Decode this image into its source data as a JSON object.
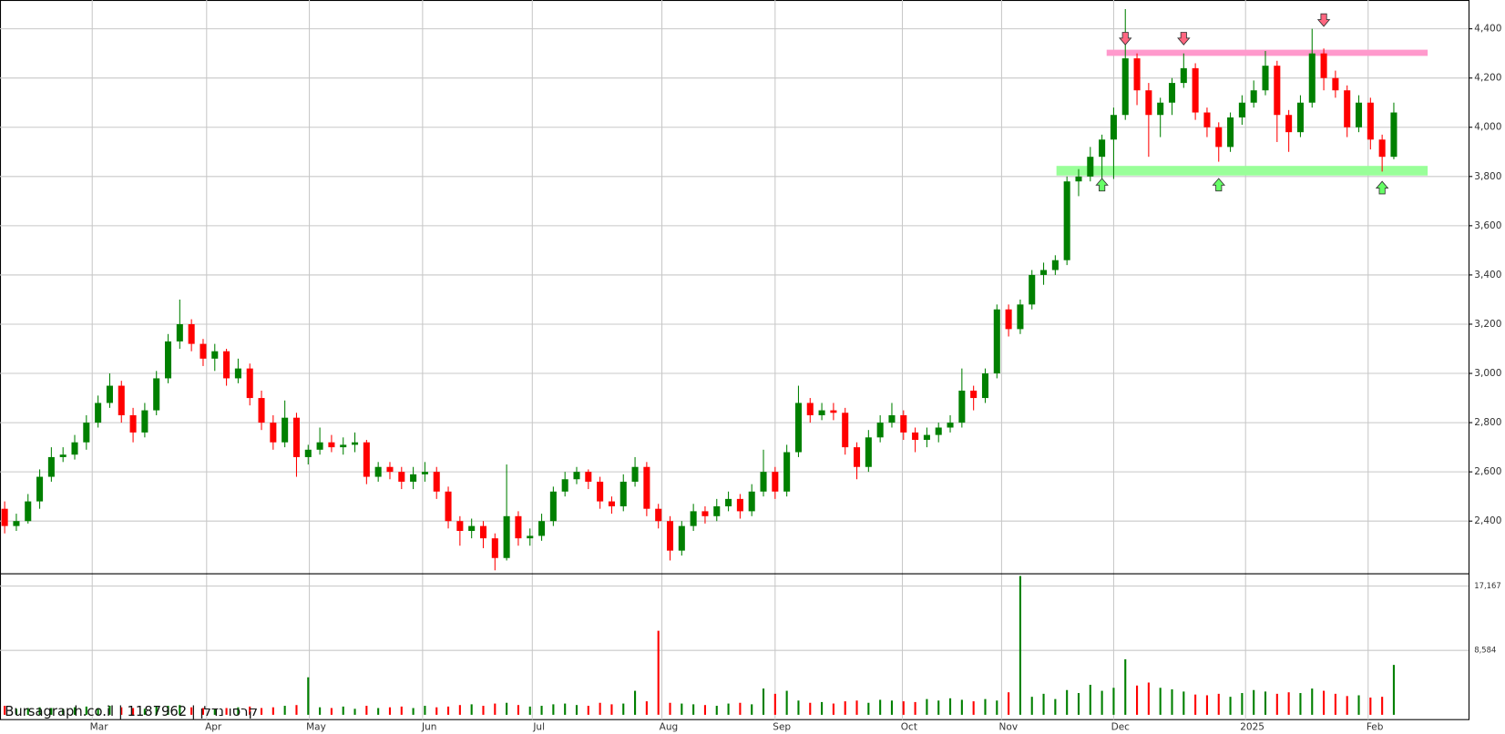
{
  "chart_data": {
    "type": "candlestick",
    "watermark": "Bursagraph.co.il | 1187962 | קרסו נדלן",
    "up_color": "#008000",
    "down_color": "#ff0000",
    "grid": true,
    "open": [
      2450,
      2380,
      2400,
      2480,
      2580,
      2660,
      2670,
      2720,
      2800,
      2880,
      2950,
      2830,
      2760,
      2850,
      2980,
      3130,
      3200,
      3120,
      3060,
      3090,
      2980,
      3020,
      2900,
      2800,
      2720,
      2820,
      2660,
      2690,
      2720,
      2700,
      2710,
      2720,
      2580,
      2620,
      2600,
      2560,
      2590,
      2600,
      2520,
      2400,
      2360,
      2380,
      2330,
      2250,
      2420,
      2330,
      2340,
      2400,
      2520,
      2570,
      2600,
      2560,
      2480,
      2460,
      2560,
      2620,
      2450,
      2400,
      2280,
      2380,
      2440,
      2420,
      2460,
      2490,
      2440,
      2520,
      2600,
      2520,
      2680,
      2880,
      2830,
      2850,
      2840,
      2700,
      2620,
      2740,
      2800,
      2830,
      2760,
      2730,
      2750,
      2780,
      2800,
      2930,
      2900,
      3000,
      3260,
      3180,
      3280,
      3400,
      3420,
      3460,
      3780,
      3800,
      3880,
      3950,
      4050,
      4280,
      4150,
      4050,
      4100,
      4180,
      4240,
      4060,
      4000,
      3920,
      4040,
      4100,
      4150,
      4250,
      4050,
      3980,
      4100,
      4300,
      4200,
      4150,
      4000,
      4100,
      3950,
      3880
    ],
    "high": [
      2480,
      2430,
      2510,
      2610,
      2700,
      2700,
      2750,
      2830,
      2910,
      3000,
      2970,
      2860,
      2880,
      3010,
      3160,
      3300,
      3220,
      3140,
      3120,
      3100,
      3060,
      3040,
      2930,
      2830,
      2890,
      2840,
      2710,
      2780,
      2750,
      2740,
      2760,
      2730,
      2640,
      2640,
      2620,
      2620,
      2640,
      2620,
      2540,
      2420,
      2410,
      2400,
      2350,
      2630,
      2440,
      2370,
      2430,
      2540,
      2600,
      2620,
      2610,
      2580,
      2500,
      2590,
      2660,
      2640,
      2470,
      2420,
      2400,
      2470,
      2460,
      2490,
      2520,
      2510,
      2550,
      2690,
      2620,
      2710,
      2950,
      2900,
      2880,
      2880,
      2860,
      2720,
      2770,
      2830,
      2880,
      2850,
      2780,
      2780,
      2800,
      2830,
      3020,
      2950,
      3020,
      3280,
      3280,
      3300,
      3420,
      3450,
      3480,
      3800,
      3830,
      3920,
      3970,
      4080,
      4480,
      4300,
      4180,
      4120,
      4200,
      4300,
      4260,
      4080,
      4020,
      4060,
      4130,
      4190,
      4310,
      4270,
      4070,
      4130,
      4400,
      4320,
      4230,
      4170,
      4130,
      4120,
      3970,
      4100
    ],
    "low": [
      2350,
      2360,
      2390,
      2450,
      2560,
      2640,
      2650,
      2690,
      2780,
      2860,
      2800,
      2720,
      2740,
      2830,
      2960,
      3100,
      3090,
      3030,
      3010,
      2950,
      2960,
      2870,
      2770,
      2690,
      2700,
      2580,
      2630,
      2670,
      2680,
      2670,
      2680,
      2550,
      2560,
      2570,
      2530,
      2530,
      2560,
      2490,
      2370,
      2300,
      2330,
      2290,
      2200,
      2240,
      2300,
      2300,
      2320,
      2380,
      2500,
      2550,
      2530,
      2450,
      2430,
      2440,
      2540,
      2420,
      2370,
      2240,
      2260,
      2360,
      2390,
      2400,
      2440,
      2410,
      2420,
      2500,
      2490,
      2500,
      2660,
      2800,
      2810,
      2810,
      2670,
      2570,
      2600,
      2720,
      2780,
      2730,
      2680,
      2700,
      2720,
      2760,
      2780,
      2850,
      2880,
      2980,
      3150,
      3160,
      3260,
      3360,
      3400,
      3440,
      3720,
      3780,
      3770,
      3790,
      4030,
      4090,
      3880,
      3960,
      4050,
      4160,
      4030,
      3960,
      3860,
      3900,
      4010,
      4080,
      4130,
      3940,
      3900,
      3960,
      4080,
      4150,
      4120,
      3960,
      3980,
      3910,
      3820,
      3870
    ],
    "close": [
      2380,
      2400,
      2480,
      2580,
      2660,
      2670,
      2720,
      2800,
      2880,
      2950,
      2830,
      2760,
      2850,
      2980,
      3130,
      3200,
      3120,
      3060,
      3090,
      2980,
      3020,
      2900,
      2800,
      2720,
      2820,
      2660,
      2690,
      2720,
      2700,
      2710,
      2720,
      2580,
      2620,
      2600,
      2560,
      2590,
      2600,
      2520,
      2400,
      2360,
      2380,
      2330,
      2250,
      2420,
      2330,
      2340,
      2400,
      2520,
      2570,
      2600,
      2560,
      2480,
      2460,
      2560,
      2620,
      2450,
      2400,
      2280,
      2380,
      2440,
      2420,
      2460,
      2490,
      2440,
      2520,
      2600,
      2520,
      2680,
      2880,
      2830,
      2850,
      2840,
      2700,
      2620,
      2740,
      2800,
      2830,
      2760,
      2730,
      2750,
      2780,
      2800,
      2930,
      2900,
      3000,
      3260,
      3180,
      3280,
      3400,
      3420,
      3460,
      3780,
      3800,
      3880,
      3950,
      4050,
      4280,
      4150,
      4050,
      4100,
      4180,
      4240,
      4060,
      4000,
      3920,
      4040,
      4100,
      4150,
      4250,
      4050,
      3980,
      4100,
      4300,
      4200,
      4150,
      4000,
      4100,
      3950,
      3880,
      4060
    ],
    "volume": [
      1200,
      800,
      900,
      1000,
      900,
      800,
      1000,
      1100,
      900,
      1200,
      1000,
      900,
      800,
      1100,
      1200,
      1300,
      1000,
      900,
      800,
      900,
      1000,
      1100,
      900,
      1000,
      1200,
      1300,
      5000,
      1000,
      900,
      1100,
      800,
      1200,
      900,
      1000,
      1100,
      900,
      1200,
      1000,
      1100,
      1300,
      1400,
      1200,
      1500,
      1600,
      1300,
      1100,
      1200,
      1400,
      1500,
      1300,
      1200,
      1600,
      1400,
      1500,
      3200,
      1800,
      11200,
      1600,
      1500,
      1400,
      1300,
      1200,
      1500,
      1600,
      1400,
      3500,
      2800,
      3200,
      1900,
      1600,
      1700,
      1500,
      1800,
      1900,
      1600,
      2000,
      1900,
      1800,
      1700,
      2100,
      1900,
      2200,
      2000,
      1800,
      2100,
      1900,
      3000,
      18500,
      2400,
      2800,
      2100,
      3300,
      2900,
      4000,
      3200,
      3600,
      7400,
      3900,
      4300,
      3600,
      3400,
      3100,
      2700,
      2600,
      2800,
      2400,
      2900,
      3300,
      3100,
      2800,
      3000,
      2900,
      3500,
      3200,
      2800,
      2500,
      2600,
      2300,
      2400,
      6650
    ],
    "xlim": [
      -0.4,
      125.4
    ],
    "xticks": [
      {
        "value": 7.5,
        "label": "Mar"
      },
      {
        "value": 17.3,
        "label": "Apr"
      },
      {
        "value": 26.1,
        "label": "May"
      },
      {
        "value": 35.8,
        "label": "Jun"
      },
      {
        "value": 45.2,
        "label": "Jul"
      },
      {
        "value": 56.3,
        "label": "Aug"
      },
      {
        "value": 66.0,
        "label": "Sep"
      },
      {
        "value": 76.9,
        "label": "Oct"
      },
      {
        "value": 85.4,
        "label": "Nov"
      },
      {
        "value": 95.0,
        "label": "Dec"
      },
      {
        "value": 106.3,
        "label": "2025"
      },
      {
        "value": 116.8,
        "label": "Feb"
      }
    ],
    "ylim": [
      2186,
      4517
    ],
    "yticks": [
      {
        "value": 2400,
        "label": "2,400"
      },
      {
        "value": 2600,
        "label": "2,600"
      },
      {
        "value": 2800,
        "label": "2,800"
      },
      {
        "value": 3000,
        "label": "3,000"
      },
      {
        "value": 3200,
        "label": "3,200"
      },
      {
        "value": 3400,
        "label": "3,400"
      },
      {
        "value": 3600,
        "label": "3,600"
      },
      {
        "value": 3800,
        "label": "3,800"
      },
      {
        "value": 4000,
        "label": "4,000"
      },
      {
        "value": 4200,
        "label": "4,200"
      },
      {
        "value": 4400,
        "label": "4,400"
      }
    ],
    "volume_ylim": [
      0,
      18800
    ],
    "volume_yticks": [
      {
        "value": 17167,
        "label": "17,167"
      },
      {
        "value": 8584,
        "label": "8,584"
      }
    ],
    "bands": [
      {
        "low": 4290,
        "high": 4315,
        "x_from": 94.4,
        "x_to": 121.9,
        "color": "#ff99cc"
      },
      {
        "low": 3804,
        "high": 3843,
        "x_from": 90.1,
        "x_to": 121.9,
        "color": "#99ff99"
      }
    ],
    "markers": [
      {
        "direction": "down",
        "x": 96,
        "y": 4335,
        "color": "#ff6680"
      },
      {
        "direction": "down",
        "x": 101,
        "y": 4335,
        "color": "#ff6680"
      },
      {
        "direction": "down",
        "x": 113,
        "y": 4410,
        "color": "#ff6680"
      },
      {
        "direction": "up",
        "x": 94,
        "y": 3792,
        "color": "#66ff66"
      },
      {
        "direction": "up",
        "x": 104,
        "y": 3792,
        "color": "#66ff66"
      },
      {
        "direction": "up",
        "x": 118,
        "y": 3780,
        "color": "#66ff66"
      }
    ]
  }
}
